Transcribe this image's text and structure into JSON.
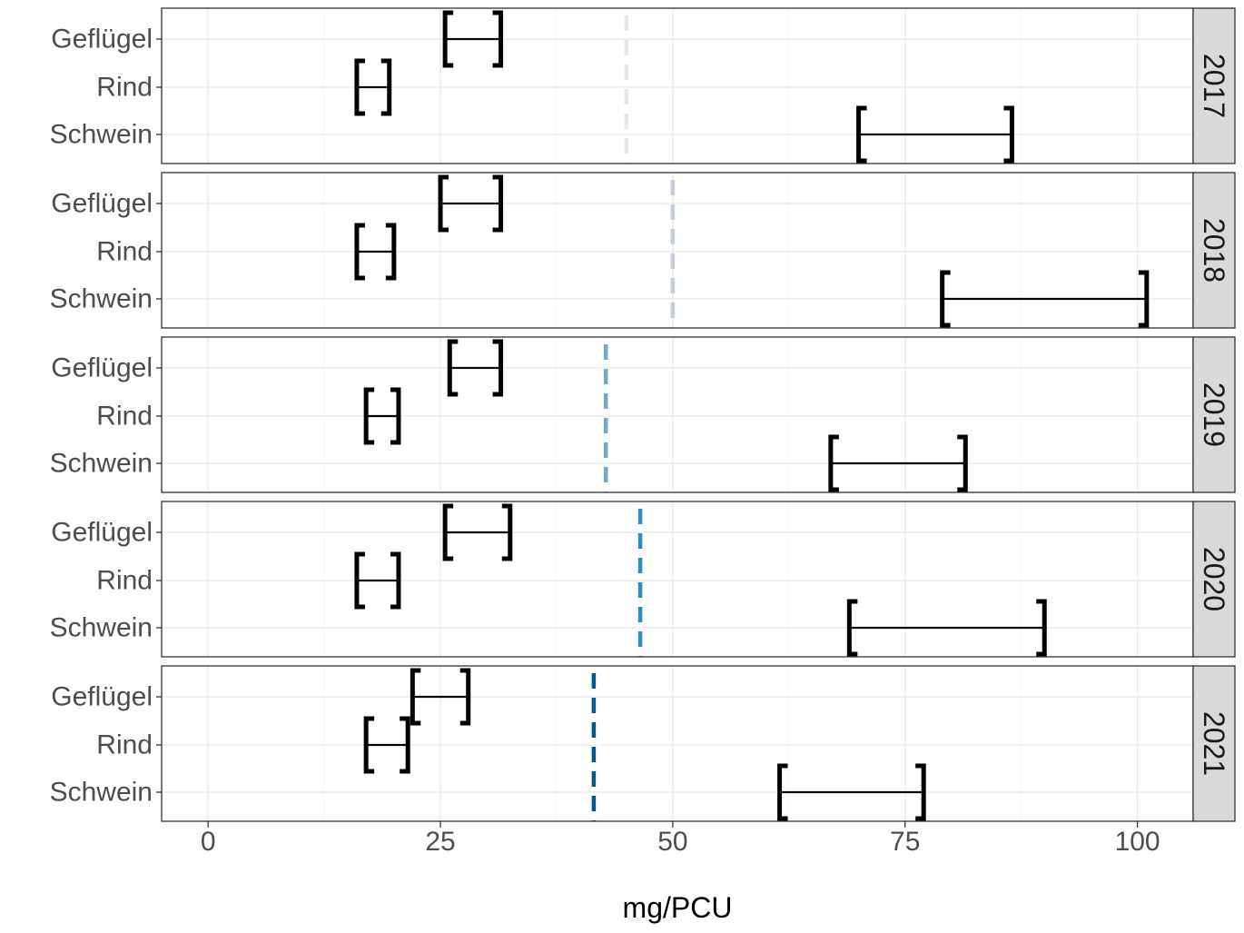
{
  "chart_data": {
    "type": "interval",
    "xlabel": "mg/PCU",
    "ylabel": "",
    "xlim": [
      -5,
      106
    ],
    "x_ticks": [
      "0",
      "25",
      "50",
      "75",
      "100"
    ],
    "x_tick_values": [
      0,
      25,
      50,
      75,
      100
    ],
    "grid": true,
    "categories": [
      "Geflügel",
      "Rind",
      "Schwein"
    ],
    "panels": [
      {
        "year": "2017",
        "reference": 45.0,
        "reference_color": "#e8e8ec",
        "intervals": [
          {
            "category": "Geflügel",
            "low": 25.5,
            "high": 31.5
          },
          {
            "category": "Rind",
            "low": 16.0,
            "high": 19.5
          },
          {
            "category": "Schwein",
            "low": 70.0,
            "high": 86.5
          }
        ]
      },
      {
        "year": "2018",
        "reference": 50.0,
        "reference_color": "#c3cbdc",
        "intervals": [
          {
            "category": "Geflügel",
            "low": 25.0,
            "high": 31.5
          },
          {
            "category": "Rind",
            "low": 16.0,
            "high": 20.0
          },
          {
            "category": "Schwein",
            "low": 79.0,
            "high": 101.0
          }
        ]
      },
      {
        "year": "2019",
        "reference": 42.8,
        "reference_color": "#74a9cf",
        "intervals": [
          {
            "category": "Geflügel",
            "low": 26.0,
            "high": 31.5
          },
          {
            "category": "Rind",
            "low": 17.0,
            "high": 20.5
          },
          {
            "category": "Schwein",
            "low": 67.0,
            "high": 81.5
          }
        ]
      },
      {
        "year": "2020",
        "reference": 46.5,
        "reference_color": "#2b8cbe",
        "intervals": [
          {
            "category": "Geflügel",
            "low": 25.5,
            "high": 32.5
          },
          {
            "category": "Rind",
            "low": 16.0,
            "high": 20.5
          },
          {
            "category": "Schwein",
            "low": 69.0,
            "high": 90.0
          }
        ]
      },
      {
        "year": "2021",
        "reference": 41.5,
        "reference_color": "#045a8d",
        "intervals": [
          {
            "category": "Geflügel",
            "low": 22.0,
            "high": 28.0
          },
          {
            "category": "Rind",
            "low": 17.0,
            "high": 21.5
          },
          {
            "category": "Schwein",
            "low": 61.5,
            "high": 77.0
          }
        ]
      }
    ]
  }
}
